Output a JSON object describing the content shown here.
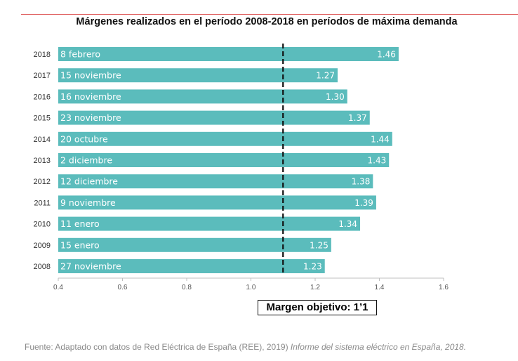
{
  "chart_data": {
    "type": "bar",
    "orientation": "horizontal",
    "title": "Márgenes realizados en el período 2008-2018 en períodos de máxima demanda",
    "categories": [
      "2018",
      "2017",
      "2016",
      "2015",
      "2014",
      "2013",
      "2012",
      "2011",
      "2010",
      "2009",
      "2008"
    ],
    "dates": [
      "8 febrero",
      "15 noviembre",
      "16 noviembre",
      "23 noviembre",
      "20 octubre",
      "2 diciembre",
      "12 diciembre",
      "9 noviembre",
      "11 enero",
      "15 enero",
      "27 noviembre"
    ],
    "values": [
      1.46,
      1.27,
      1.3,
      1.37,
      1.44,
      1.43,
      1.38,
      1.39,
      1.34,
      1.25,
      1.23
    ],
    "value_labels": [
      "1.46",
      "1.27",
      "1.30",
      "1.37",
      "1.44",
      "1.43",
      "1.38",
      "1.39",
      "1.34",
      "1.25",
      "1.23"
    ],
    "xlim": [
      0.4,
      1.6
    ],
    "xticks": [
      "0.4",
      "0.6",
      "0.8",
      "1.0",
      "1.2",
      "1.4",
      "1.6"
    ],
    "reference_line": {
      "value": 1.1,
      "style": "dashed",
      "label": "Margen objetivo: 1’1"
    },
    "bar_color": "#5bbcbc",
    "grid": false
  },
  "source": {
    "prefix": "Fuente: Adaptado con datos de Red Eléctrica de España (REE), 2019)",
    "italic": "Informe del sistema eléctrico en España, 2018."
  }
}
